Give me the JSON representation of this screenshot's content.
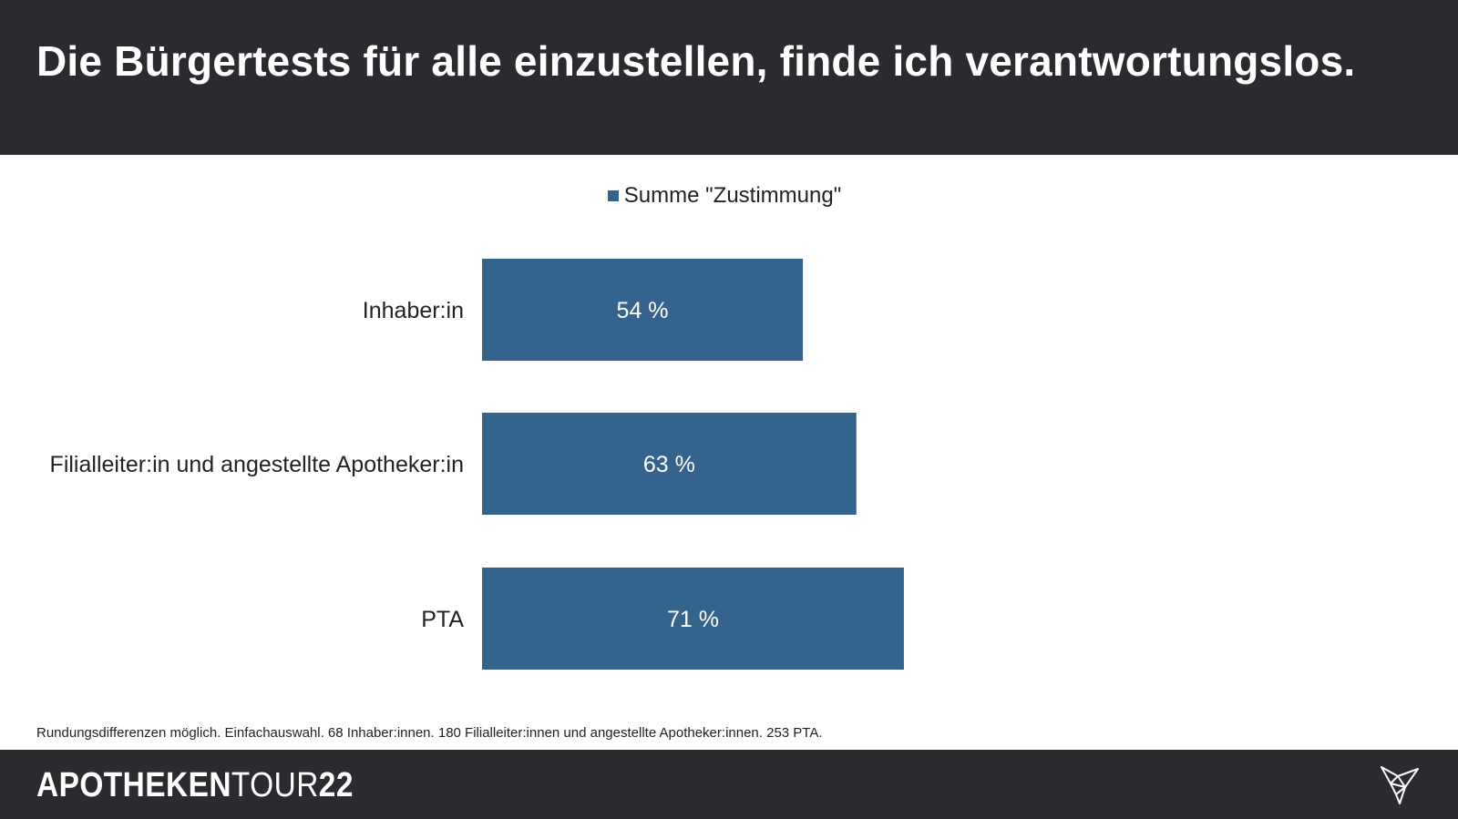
{
  "header": {
    "title": "Die Bürgertests für alle einzustellen, finde ich verantwortungslos."
  },
  "chart_data": {
    "type": "bar",
    "orientation": "horizontal",
    "legend": [
      "Summe \"Zustimmung\""
    ],
    "legend_position": "top-center",
    "categories": [
      "Inhaber:in",
      "Filialleiter:in und angestellte Apotheker:in",
      "PTA"
    ],
    "values": [
      54,
      63,
      71
    ],
    "data_labels": [
      "54 %",
      "63 %",
      "71 %"
    ],
    "xlim": [
      0,
      100
    ],
    "grid": false,
    "bar_color": "#34648e"
  },
  "footnote": "Rundungsdifferenzen möglich. Einfachauswahl. 68 Inhaber:innen. 180 Filialleiter:innen und angestellte Apotheker:innen. 253 PTA.",
  "footer": {
    "brand_part1": "APOTHEKEN",
    "brand_part2": "TOUR",
    "brand_part3": "22",
    "logo_icon": "origami-bird-icon"
  }
}
